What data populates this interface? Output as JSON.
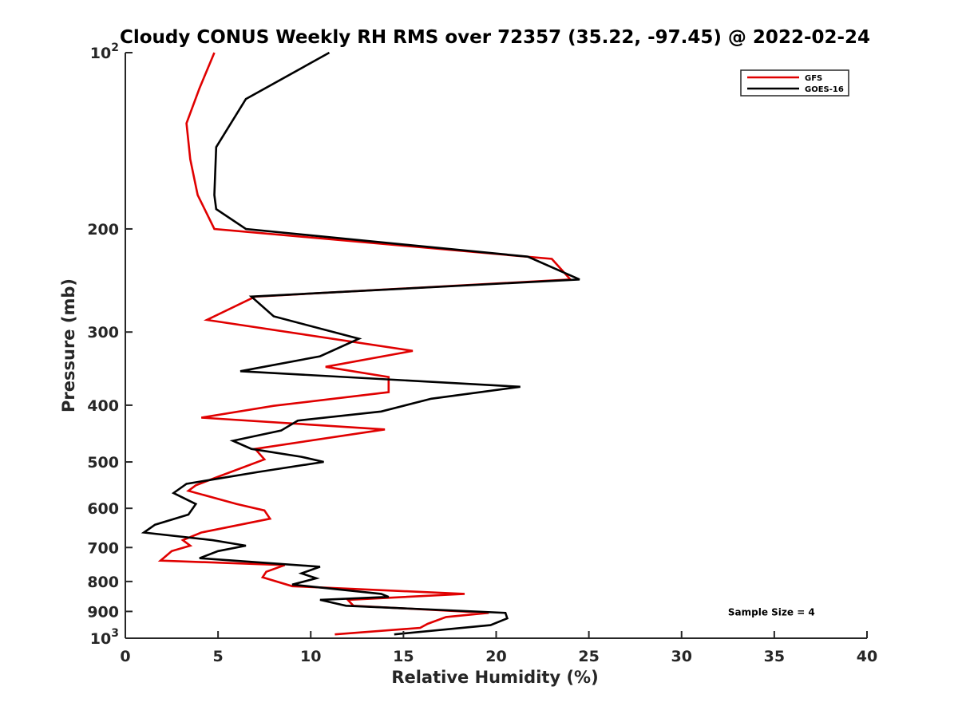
{
  "chart_data": {
    "type": "line",
    "title": "Cloudy CONUS Weekly RH RMS over 72357 (35.22, -97.45) @ 2022-02-24",
    "xlabel": "Relative Humidity (%)",
    "ylabel": "Pressure (mb)",
    "xlim": [
      0,
      40
    ],
    "ylim": [
      100,
      1000
    ],
    "y_scale": "log",
    "y_reversed": true,
    "grid": false,
    "legend_position": "top-right",
    "x_ticks": [
      "0",
      "5",
      "10",
      "15",
      "20",
      "25",
      "30",
      "35",
      "40"
    ],
    "x_tick_values": [
      0,
      5,
      10,
      15,
      20,
      25,
      30,
      35,
      40
    ],
    "y_ticks": [
      {
        "value": 100,
        "base": "10",
        "exp": "2",
        "label": ""
      },
      {
        "value": 200,
        "label": "200"
      },
      {
        "value": 300,
        "label": "300"
      },
      {
        "value": 400,
        "label": "400"
      },
      {
        "value": 500,
        "label": "500"
      },
      {
        "value": 600,
        "label": "600"
      },
      {
        "value": 700,
        "label": "700"
      },
      {
        "value": 800,
        "label": "800"
      },
      {
        "value": 900,
        "label": "900"
      },
      {
        "value": 1000,
        "base": "10",
        "exp": "3",
        "label": ""
      }
    ],
    "series": [
      {
        "name": "GFS",
        "color": "#e00000",
        "points": [
          [
            4.8,
            100
          ],
          [
            4.0,
            115
          ],
          [
            3.3,
            132
          ],
          [
            3.5,
            152
          ],
          [
            3.9,
            175
          ],
          [
            4.8,
            200
          ],
          [
            23.0,
            225
          ],
          [
            23.8,
            240
          ],
          [
            24.0,
            244
          ],
          [
            7.0,
            261
          ],
          [
            4.4,
            286
          ],
          [
            15.5,
            323
          ],
          [
            10.8,
            344
          ],
          [
            14.2,
            358
          ],
          [
            14.2,
            380
          ],
          [
            8.0,
            401
          ],
          [
            4.1,
            420
          ],
          [
            14.0,
            440
          ],
          [
            7.0,
            475
          ],
          [
            7.5,
            495
          ],
          [
            5.0,
            530
          ],
          [
            3.8,
            548
          ],
          [
            3.4,
            560
          ],
          [
            6.0,
            590
          ],
          [
            7.5,
            605
          ],
          [
            7.8,
            625
          ],
          [
            4.1,
            660
          ],
          [
            3.1,
            680
          ],
          [
            3.5,
            695
          ],
          [
            2.5,
            710
          ],
          [
            1.9,
            737
          ],
          [
            8.6,
            750
          ],
          [
            7.6,
            770
          ],
          [
            7.4,
            787
          ],
          [
            9.0,
            815
          ],
          [
            18.3,
            840
          ],
          [
            12.0,
            860
          ],
          [
            12.3,
            880
          ],
          [
            19.6,
            905
          ],
          [
            17.3,
            920
          ],
          [
            16.3,
            945
          ],
          [
            15.9,
            960
          ],
          [
            11.3,
            985
          ]
        ]
      },
      {
        "name": "GOES-16",
        "color": "#000000",
        "points": [
          [
            11.0,
            100
          ],
          [
            6.5,
            120
          ],
          [
            4.9,
            145
          ],
          [
            4.8,
            175
          ],
          [
            4.9,
            185
          ],
          [
            6.5,
            200
          ],
          [
            21.7,
            223
          ],
          [
            24.5,
            244
          ],
          [
            6.8,
            261
          ],
          [
            8.0,
            282
          ],
          [
            12.6,
            308
          ],
          [
            10.5,
            330
          ],
          [
            6.2,
            350
          ],
          [
            21.3,
            372
          ],
          [
            16.5,
            390
          ],
          [
            13.8,
            410
          ],
          [
            9.3,
            425
          ],
          [
            8.4,
            442
          ],
          [
            5.8,
            460
          ],
          [
            6.8,
            475
          ],
          [
            9.5,
            490
          ],
          [
            10.7,
            500
          ],
          [
            7.2,
            520
          ],
          [
            3.3,
            545
          ],
          [
            2.6,
            565
          ],
          [
            3.8,
            590
          ],
          [
            3.4,
            615
          ],
          [
            1.6,
            640
          ],
          [
            1.0,
            660
          ],
          [
            4.7,
            680
          ],
          [
            6.5,
            695
          ],
          [
            5.0,
            710
          ],
          [
            4.0,
            730
          ],
          [
            10.5,
            755
          ],
          [
            9.5,
            775
          ],
          [
            10.3,
            790
          ],
          [
            9.0,
            810
          ],
          [
            13.8,
            840
          ],
          [
            14.2,
            850
          ],
          [
            10.5,
            860
          ],
          [
            11.9,
            880
          ],
          [
            20.5,
            905
          ],
          [
            20.6,
            925
          ],
          [
            19.7,
            950
          ],
          [
            14.5,
            985
          ]
        ]
      }
    ],
    "annotations": [
      {
        "text": "Sample Size = 4",
        "x": 35.0,
        "y": 900
      }
    ]
  }
}
